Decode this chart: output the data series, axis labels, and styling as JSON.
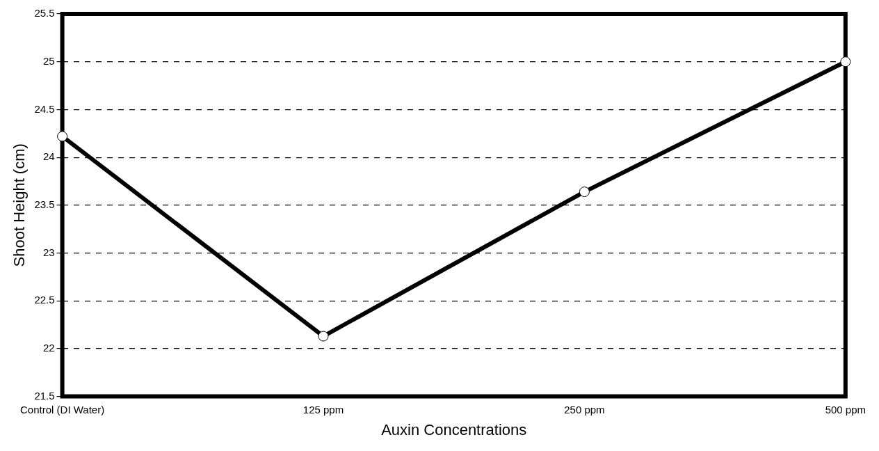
{
  "chart_data": {
    "type": "line",
    "xlabel": "Auxin Concentrations",
    "ylabel": "Shoot Height (cm)",
    "categories": [
      "Control (DI Water)",
      "125 ppm",
      "250 ppm",
      "500 ppm"
    ],
    "series": [
      {
        "color": "#000000",
        "values": [
          24.22,
          22.13,
          23.64,
          25.0
        ]
      }
    ],
    "ylim": [
      21.5,
      25.5
    ],
    "yticks": [
      21.5,
      22,
      22.5,
      23,
      23.5,
      24,
      24.5,
      25,
      25.5
    ],
    "grid": "y",
    "marker": "circle",
    "line_style": "solid",
    "legend": false
  }
}
